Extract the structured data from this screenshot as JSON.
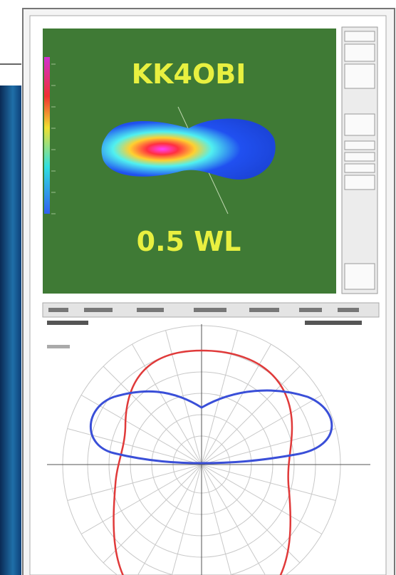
{
  "image": {
    "callsign": "KK4OBI",
    "length": "0.5 WL"
  }
}
